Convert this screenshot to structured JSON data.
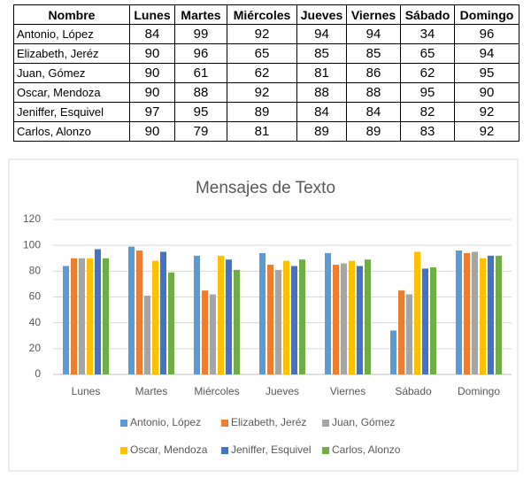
{
  "table": {
    "header": [
      "Nombre",
      "Lunes",
      "Martes",
      "Miércoles",
      "Jueves",
      "Viernes",
      "Sábado",
      "Domingo"
    ],
    "rows": [
      [
        "Antonio, López",
        84,
        99,
        92,
        94,
        94,
        34,
        96
      ],
      [
        "Elizabeth, Jeréz",
        90,
        96,
        65,
        85,
        85,
        65,
        94
      ],
      [
        "Juan, Gómez",
        90,
        61,
        62,
        81,
        86,
        62,
        95
      ],
      [
        "Oscar, Mendoza",
        90,
        88,
        92,
        88,
        88,
        95,
        90
      ],
      [
        "Jeniffer, Esquivel",
        97,
        95,
        89,
        84,
        84,
        82,
        92
      ],
      [
        "Carlos, Alonzo",
        90,
        79,
        81,
        89,
        89,
        83,
        92
      ]
    ]
  },
  "chart_data": {
    "type": "bar",
    "title": "Mensajes de Texto",
    "categories": [
      "Lunes",
      "Martes",
      "Miércoles",
      "Jueves",
      "Viernes",
      "Sábado",
      "Domingo"
    ],
    "series": [
      {
        "name": "Antonio, López",
        "color": "#5b9bd5",
        "values": [
          84,
          99,
          92,
          94,
          94,
          34,
          96
        ]
      },
      {
        "name": "Elizabeth, Jeréz",
        "color": "#ed7d31",
        "values": [
          90,
          96,
          65,
          85,
          85,
          65,
          94
        ]
      },
      {
        "name": "Juan, Gómez",
        "color": "#a5a5a5",
        "values": [
          90,
          61,
          62,
          81,
          86,
          62,
          95
        ]
      },
      {
        "name": "Oscar, Mendoza",
        "color": "#ffc000",
        "values": [
          90,
          88,
          92,
          88,
          88,
          95,
          90
        ]
      },
      {
        "name": "Jeniffer, Esquivel",
        "color": "#4472c4",
        "values": [
          97,
          95,
          89,
          84,
          84,
          82,
          92
        ]
      },
      {
        "name": "Carlos, Alonzo",
        "color": "#70ad47",
        "values": [
          90,
          79,
          81,
          89,
          89,
          83,
          92
        ]
      }
    ],
    "ylim": [
      0,
      120
    ],
    "yticks": [
      0,
      20,
      40,
      60,
      80,
      100,
      120
    ],
    "grid": true,
    "legend": "bottom"
  }
}
